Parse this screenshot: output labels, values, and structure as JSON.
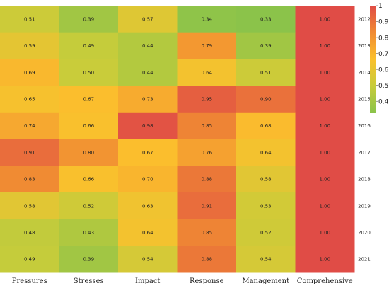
{
  "chart_data": {
    "type": "heatmap",
    "title": "",
    "xlabel": "",
    "ylabel": "",
    "columns": [
      "Pressures",
      "Stresses",
      "Impact",
      "Response",
      "Management",
      "Comprehensive"
    ],
    "rows": [
      "2012",
      "2013",
      "2014",
      "2015",
      "2016",
      "2017",
      "2018",
      "2019",
      "2020",
      "2021"
    ],
    "values": [
      [
        0.51,
        0.39,
        0.57,
        0.34,
        0.33,
        1.0
      ],
      [
        0.59,
        0.49,
        0.44,
        0.79,
        0.39,
        1.0
      ],
      [
        0.69,
        0.5,
        0.44,
        0.64,
        0.51,
        1.0
      ],
      [
        0.65,
        0.67,
        0.73,
        0.95,
        0.9,
        1.0
      ],
      [
        0.74,
        0.66,
        0.98,
        0.85,
        0.68,
        1.0
      ],
      [
        0.91,
        0.8,
        0.67,
        0.76,
        0.64,
        1.0
      ],
      [
        0.83,
        0.66,
        0.7,
        0.88,
        0.58,
        1.0
      ],
      [
        0.58,
        0.52,
        0.63,
        0.91,
        0.53,
        1.0
      ],
      [
        0.48,
        0.43,
        0.64,
        0.85,
        0.52,
        1.0
      ],
      [
        0.49,
        0.39,
        0.54,
        0.88,
        0.54,
        1.0
      ]
    ],
    "colorbar": {
      "range": [
        0.33,
        1.0
      ],
      "ticks": [
        "1",
        "0.9",
        "0.8",
        "0.7",
        "0.6",
        "0.5",
        "0.4"
      ],
      "colors": [
        "#8bc34a",
        "#c8cc3a",
        "#fbc02d",
        "#f08a33",
        "#e04c46"
      ]
    },
    "row_labels_position": "right",
    "colorbar_position": "right",
    "grid": false
  }
}
